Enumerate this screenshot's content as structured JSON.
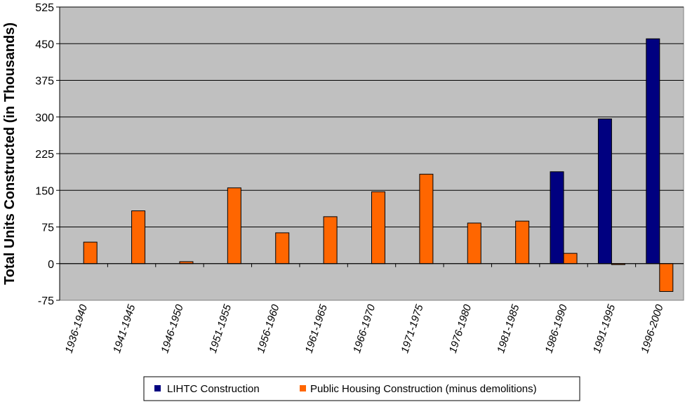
{
  "chart_data": {
    "type": "bar",
    "title": "",
    "xlabel": "",
    "ylabel": "Total Units Constructed (in Thousands)",
    "ylim": [
      -75,
      525
    ],
    "yticks": [
      -75,
      0,
      75,
      150,
      225,
      300,
      375,
      450,
      525
    ],
    "ytick_labels": [
      "-75",
      "0",
      "75",
      "150",
      "225",
      "300",
      "375",
      "450",
      "525"
    ],
    "grid": true,
    "legend_position": "bottom",
    "categories": [
      "1936-1940",
      "1941-1945",
      "1946-1950",
      "1951-1955",
      "1956-1960",
      "1961-1965",
      "1966-1970",
      "1971-1975",
      "1976-1980",
      "1981-1985",
      "1986-1990",
      "1991-1995",
      "1996-2000"
    ],
    "series": [
      {
        "name": "LIHTC Construction",
        "color": "#000080",
        "values": [
          0,
          0,
          0,
          0,
          0,
          0,
          0,
          0,
          0,
          0,
          188,
          296,
          460
        ]
      },
      {
        "name": "Public Housing Construction (minus demolitions)",
        "color": "#ff6600",
        "values": [
          44,
          108,
          4,
          155,
          63,
          96,
          147,
          183,
          83,
          87,
          21,
          -2,
          -57
        ]
      }
    ]
  },
  "colors": {
    "plot_background": "#c0c0c0",
    "gridline": "#000000"
  }
}
